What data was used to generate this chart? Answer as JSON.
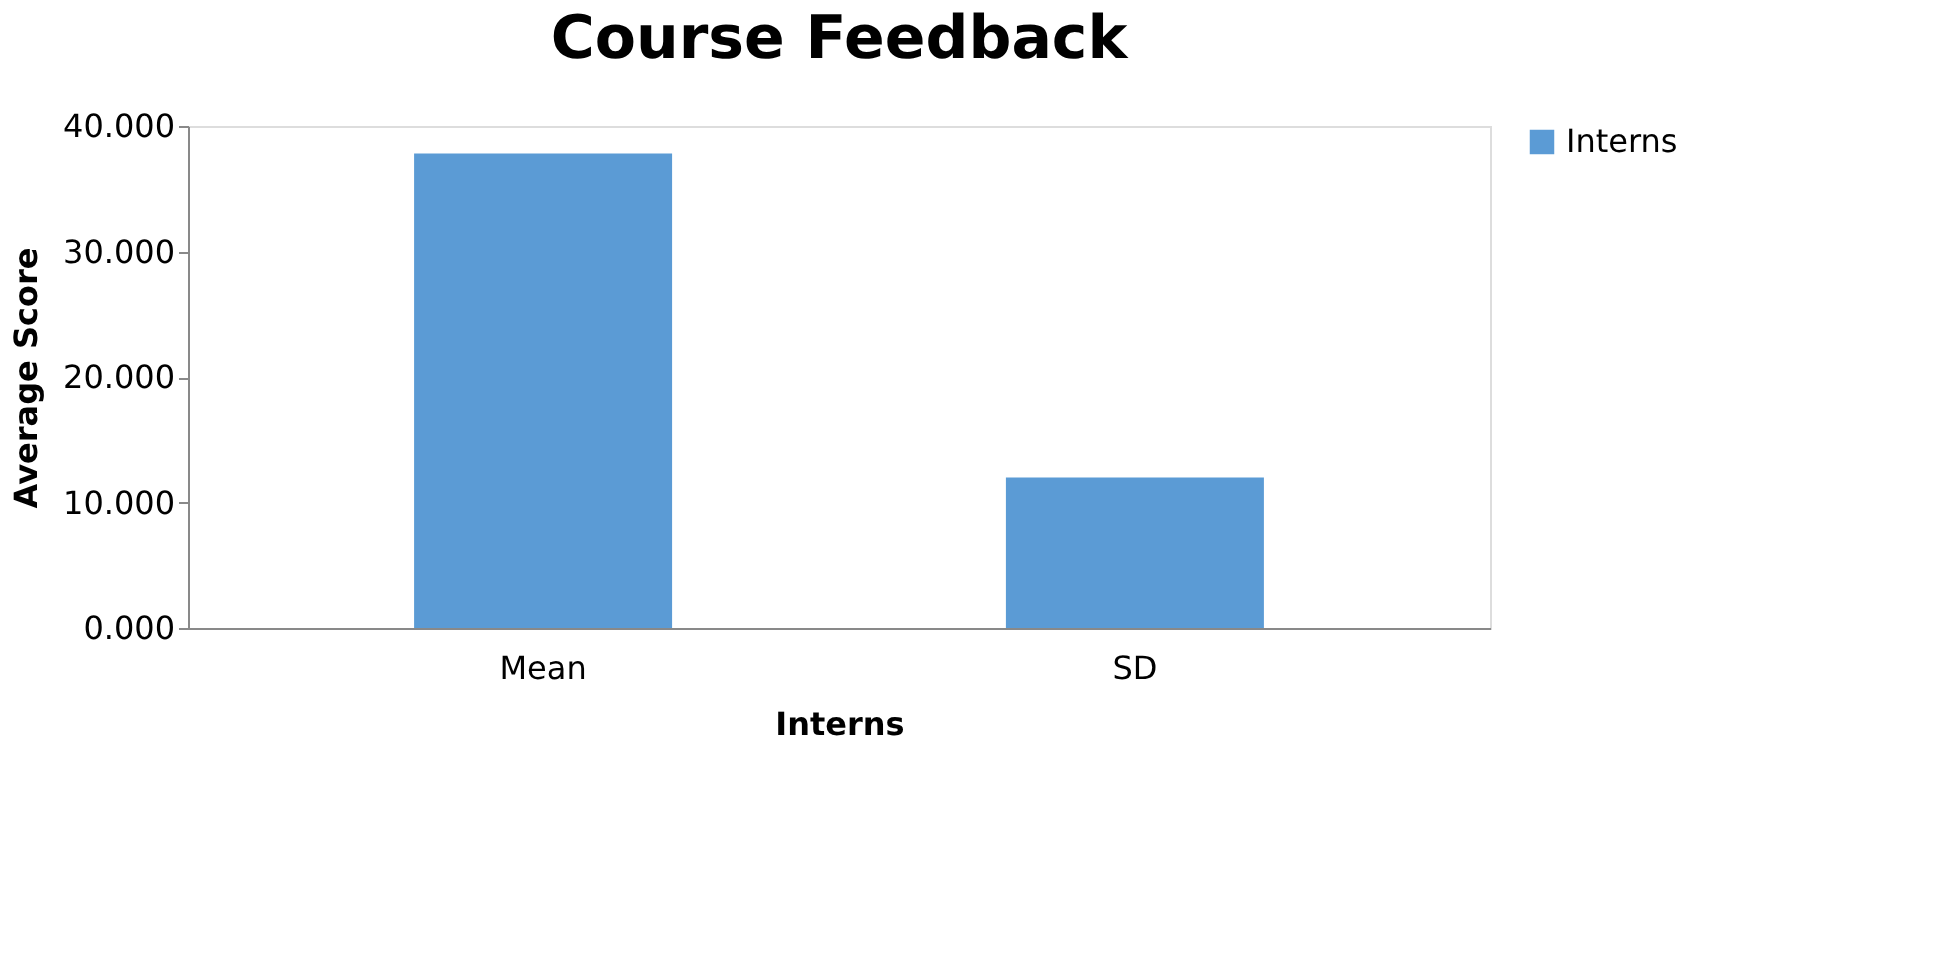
{
  "chart_data": {
    "type": "bar",
    "title": "Course Feedback",
    "xlabel": "Interns",
    "ylabel": "Average Score",
    "categories": [
      "Mean",
      "SD"
    ],
    "series": [
      {
        "name": "Interns",
        "color": "#5b9bd5",
        "values": [
          37.8,
          12.0
        ]
      }
    ],
    "ylim": [
      0,
      40
    ],
    "yticks": [
      {
        "value": 0,
        "label": "0.000"
      },
      {
        "value": 10,
        "label": "10.000"
      },
      {
        "value": 20,
        "label": "20.000"
      },
      {
        "value": 30,
        "label": "30.000"
      },
      {
        "value": 40,
        "label": "40.000"
      }
    ],
    "grid": false,
    "legend": "right"
  }
}
